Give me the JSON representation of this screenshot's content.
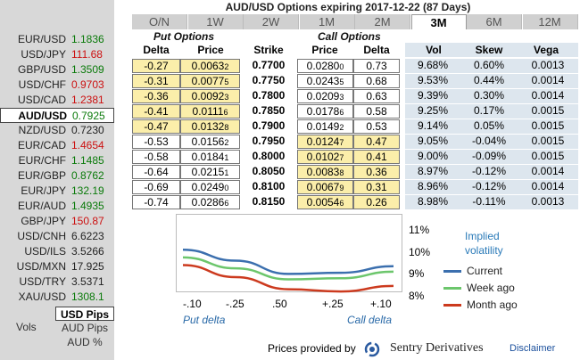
{
  "title": "AUD/USD Options expiring 2017-12-22 (87 Days)",
  "tabs": [
    "O/N",
    "1W",
    "2W",
    "1M",
    "2M",
    "3M",
    "6M",
    "12M"
  ],
  "active_tab": "3M",
  "sidebar": {
    "pairs": [
      {
        "pair": "EUR/USD",
        "rate": "1.1836",
        "color": "green"
      },
      {
        "pair": "USD/JPY",
        "rate": "111.68",
        "color": "red"
      },
      {
        "pair": "GBP/USD",
        "rate": "1.3509",
        "color": "green"
      },
      {
        "pair": "USD/CHF",
        "rate": "0.9703",
        "color": "red"
      },
      {
        "pair": "USD/CAD",
        "rate": "1.2381",
        "color": "red"
      },
      {
        "pair": "AUD/USD",
        "rate": "0.7925",
        "color": "green",
        "selected": true
      },
      {
        "pair": "NZD/USD",
        "rate": "0.7230",
        "color": "black"
      },
      {
        "pair": "EUR/CAD",
        "rate": "1.4654",
        "color": "red"
      },
      {
        "pair": "EUR/CHF",
        "rate": "1.1485",
        "color": "green"
      },
      {
        "pair": "EUR/GBP",
        "rate": "0.8762",
        "color": "green"
      },
      {
        "pair": "EUR/JPY",
        "rate": "132.19",
        "color": "green"
      },
      {
        "pair": "EUR/AUD",
        "rate": "1.4935",
        "color": "green"
      },
      {
        "pair": "GBP/JPY",
        "rate": "150.87",
        "color": "red"
      },
      {
        "pair": "USD/CNH",
        "rate": "6.6223",
        "color": "black"
      },
      {
        "pair": "USD/ILS",
        "rate": "3.5266",
        "color": "black"
      },
      {
        "pair": "USD/MXN",
        "rate": "17.925",
        "color": "black"
      },
      {
        "pair": "USD/TRY",
        "rate": "3.5371",
        "color": "black"
      },
      {
        "pair": "XAU/USD",
        "rate": "1308.1",
        "color": "green"
      }
    ],
    "vols_label": "Vols",
    "units": [
      "USD Pips",
      "AUD Pips",
      "AUD %"
    ],
    "active_unit": "USD Pips"
  },
  "headers": {
    "put_options": "Put Options",
    "call_options": "Call Options",
    "delta": "Delta",
    "price": "Price",
    "strike": "Strike",
    "vol": "Vol",
    "skew": "Skew",
    "vega": "Vega"
  },
  "rows": [
    {
      "put_delta": "-0.27",
      "put_price": "0.0063",
      "put_price_sub": "2",
      "strike": "0.7700",
      "call_price": "0.0280",
      "call_price_sub": "0",
      "call_delta": "0.73",
      "vol": "9.68%",
      "skew": "0.60%",
      "vega": "0.0013"
    },
    {
      "put_delta": "-0.31",
      "put_price": "0.0077",
      "put_price_sub": "5",
      "strike": "0.7750",
      "call_price": "0.0243",
      "call_price_sub": "5",
      "call_delta": "0.68",
      "vol": "9.53%",
      "skew": "0.44%",
      "vega": "0.0014"
    },
    {
      "put_delta": "-0.36",
      "put_price": "0.0092",
      "put_price_sub": "3",
      "strike": "0.7800",
      "call_price": "0.0209",
      "call_price_sub": "3",
      "call_delta": "0.63",
      "vol": "9.39%",
      "skew": "0.30%",
      "vega": "0.0014"
    },
    {
      "put_delta": "-0.41",
      "put_price": "0.0111",
      "put_price_sub": "6",
      "strike": "0.7850",
      "call_price": "0.0178",
      "call_price_sub": "6",
      "call_delta": "0.58",
      "vol": "9.25%",
      "skew": "0.17%",
      "vega": "0.0015"
    },
    {
      "put_delta": "-0.47",
      "put_price": "0.0132",
      "put_price_sub": "8",
      "strike": "0.7900",
      "call_price": "0.0149",
      "call_price_sub": "2",
      "call_delta": "0.53",
      "vol": "9.14%",
      "skew": "0.05%",
      "vega": "0.0015"
    },
    {
      "put_delta": "-0.53",
      "put_price": "0.0156",
      "put_price_sub": "2",
      "strike": "0.7950",
      "call_price": "0.0124",
      "call_price_sub": "7",
      "call_delta": "0.47",
      "vol": "9.05%",
      "skew": "-0.04%",
      "vega": "0.0015"
    },
    {
      "put_delta": "-0.58",
      "put_price": "0.0184",
      "put_price_sub": "1",
      "strike": "0.8000",
      "call_price": "0.0102",
      "call_price_sub": "7",
      "call_delta": "0.41",
      "vol": "9.00%",
      "skew": "-0.09%",
      "vega": "0.0015"
    },
    {
      "put_delta": "-0.64",
      "put_price": "0.0215",
      "put_price_sub": "1",
      "strike": "0.8050",
      "call_price": "0.0083",
      "call_price_sub": "8",
      "call_delta": "0.36",
      "vol": "8.97%",
      "skew": "-0.12%",
      "vega": "0.0014"
    },
    {
      "put_delta": "-0.69",
      "put_price": "0.0249",
      "put_price_sub": "0",
      "strike": "0.8100",
      "call_price": "0.0067",
      "call_price_sub": "9",
      "call_delta": "0.31",
      "vol": "8.96%",
      "skew": "-0.12%",
      "vega": "0.0014"
    },
    {
      "put_delta": "-0.74",
      "put_price": "0.0286",
      "put_price_sub": "6",
      "strike": "0.8150",
      "call_price": "0.0054",
      "call_price_sub": "6",
      "call_delta": "0.26",
      "vol": "8.98%",
      "skew": "-0.11%",
      "vega": "0.0013"
    }
  ],
  "chart_data": {
    "type": "line",
    "x_tick_labels": [
      "-.10",
      "-.25",
      ".50",
      "+.25",
      "+.10"
    ],
    "y_tick_labels": [
      "11%",
      "10%",
      "9%",
      "8%"
    ],
    "ylim": [
      8,
      11
    ],
    "x": [
      0,
      1,
      2,
      3,
      4
    ],
    "series": [
      {
        "name": "Current",
        "color": "#3b6fae",
        "values": [
          10.1,
          9.6,
          9.0,
          9.05,
          9.35
        ]
      },
      {
        "name": "Week ago",
        "color": "#6cc66c",
        "values": [
          9.75,
          9.25,
          8.75,
          8.8,
          9.1
        ]
      },
      {
        "name": "Month ago",
        "color": "#cc3a1e",
        "values": [
          9.4,
          8.85,
          8.3,
          8.2,
          8.45
        ]
      }
    ],
    "legend_title": "Implied volatility",
    "put_label": "Put delta",
    "call_label": "Call delta"
  },
  "footer": {
    "prices_text": "Prices provided by",
    "provider": "Sentry Derivatives",
    "disclaimer": "Disclaimer"
  }
}
